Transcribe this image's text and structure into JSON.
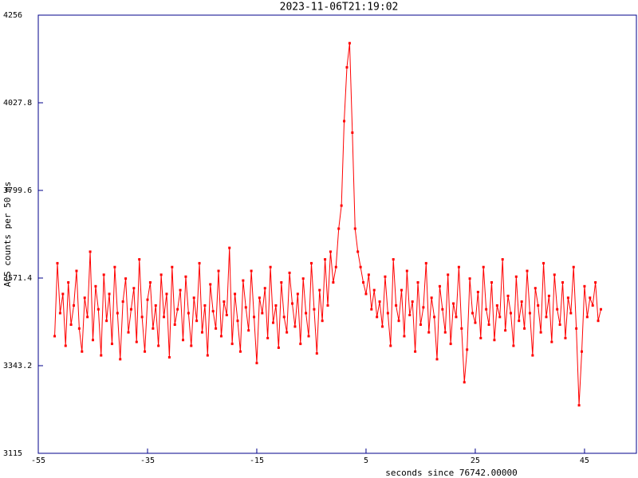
{
  "chart_data": {
    "type": "line",
    "title": "2023-11-06T21:19:02",
    "x_label": "seconds since 76742.00000",
    "y_label": "ACS counts per 50 ms",
    "xlim": [
      -55,
      54.5
    ],
    "xticks": [
      -55,
      -35,
      -15,
      5,
      25,
      45
    ],
    "ylim": [
      3115,
      4256
    ],
    "yticks": [
      3115,
      3343.2,
      3571.4,
      3799.6,
      4027.8,
      4256
    ],
    "x": [
      -52,
      -51.5,
      -51,
      -50.5,
      -50,
      -49.5,
      -49,
      -48.5,
      -48,
      -47.5,
      -47,
      -46.5,
      -46,
      -45.5,
      -45,
      -44.5,
      -44,
      -43.5,
      -43,
      -42.5,
      -42,
      -41.5,
      -41,
      -40.5,
      -40,
      -39.5,
      -39,
      -38.5,
      -38,
      -37.5,
      -37,
      -36.5,
      -36,
      -35.5,
      -35,
      -34.5,
      -34,
      -33.5,
      -33,
      -32.5,
      -32,
      -31.5,
      -31,
      -30.5,
      -30,
      -29.5,
      -29,
      -28.5,
      -28,
      -27.5,
      -27,
      -26.5,
      -26,
      -25.5,
      -25,
      -24.5,
      -24,
      -23.5,
      -23,
      -22.5,
      -22,
      -21.5,
      -21,
      -20.5,
      -20,
      -19.5,
      -19,
      -18.5,
      -18,
      -17.5,
      -17,
      -16.5,
      -16,
      -15.5,
      -15,
      -14.5,
      -14,
      -13.5,
      -13,
      -12.5,
      -12,
      -11.5,
      -11,
      -10.5,
      -10,
      -9.5,
      -9,
      -8.5,
      -8,
      -7.5,
      -7,
      -6.5,
      -6,
      -5.5,
      -5,
      -4.5,
      -4,
      -3.5,
      -3,
      -2.5,
      -2,
      -1.5,
      -1,
      -0.5,
      0,
      0.5,
      1,
      1.5,
      2,
      2.5,
      3,
      3.5,
      4,
      4.5,
      5,
      5.5,
      6,
      6.5,
      7,
      7.5,
      8,
      8.5,
      9,
      9.5,
      10,
      10.5,
      11,
      11.5,
      12,
      12.5,
      13,
      13.5,
      14,
      14.5,
      15,
      15.5,
      16,
      16.5,
      17,
      17.5,
      18,
      18.5,
      19,
      19.5,
      20,
      20.5,
      21,
      21.5,
      22,
      22.5,
      23,
      23.5,
      24,
      24.5,
      25,
      25.5,
      26,
      26.5,
      27,
      27.5,
      28,
      28.5,
      29,
      29.5,
      30,
      30.5,
      31,
      31.5,
      32,
      32.5,
      33,
      33.5,
      34,
      34.5,
      35,
      35.5,
      36,
      36.5,
      37,
      37.5,
      38,
      38.5,
      39,
      39.5,
      40,
      40.5,
      41,
      41.5,
      42,
      42.5,
      43,
      43.5,
      44,
      44.5,
      45,
      45.5,
      46,
      46.5,
      47,
      47.5,
      48
    ],
    "series": [
      {
        "color": "#ff0000",
        "values": [
          3420,
          3610,
          3480,
          3530,
          3395,
          3560,
          3450,
          3500,
          3590,
          3440,
          3380,
          3520,
          3470,
          3640,
          3410,
          3550,
          3490,
          3370,
          3580,
          3460,
          3530,
          3400,
          3600,
          3480,
          3360,
          3510,
          3570,
          3430,
          3490,
          3545,
          3405,
          3620,
          3470,
          3380,
          3515,
          3560,
          3440,
          3500,
          3395,
          3580,
          3470,
          3530,
          3365,
          3600,
          3450,
          3490,
          3540,
          3410,
          3575,
          3480,
          3395,
          3520,
          3460,
          3610,
          3430,
          3500,
          3370,
          3555,
          3485,
          3440,
          3590,
          3420,
          3510,
          3475,
          3650,
          3400,
          3530,
          3460,
          3380,
          3565,
          3495,
          3435,
          3590,
          3470,
          3350,
          3520,
          3480,
          3545,
          3415,
          3600,
          3455,
          3500,
          3390,
          3560,
          3470,
          3430,
          3585,
          3505,
          3445,
          3530,
          3400,
          3570,
          3480,
          3420,
          3610,
          3490,
          3375,
          3540,
          3460,
          3620,
          3500,
          3640,
          3560,
          3600,
          3700,
          3760,
          3980,
          4120,
          4183,
          3950,
          3700,
          3640,
          3600,
          3560,
          3530,
          3580,
          3490,
          3540,
          3470,
          3510,
          3445,
          3575,
          3480,
          3395,
          3620,
          3500,
          3460,
          3540,
          3420,
          3590,
          3475,
          3510,
          3380,
          3560,
          3450,
          3495,
          3610,
          3430,
          3520,
          3470,
          3360,
          3550,
          3490,
          3430,
          3580,
          3400,
          3505,
          3470,
          3600,
          3440,
          3300,
          3385,
          3570,
          3480,
          3455,
          3535,
          3415,
          3600,
          3490,
          3450,
          3560,
          3410,
          3500,
          3470,
          3620,
          3435,
          3525,
          3480,
          3395,
          3575,
          3460,
          3510,
          3440,
          3590,
          3480,
          3370,
          3545,
          3500,
          3430,
          3610,
          3470,
          3525,
          3405,
          3580,
          3490,
          3450,
          3560,
          3415,
          3520,
          3480,
          3600,
          3440,
          3240,
          3380,
          3550,
          3470,
          3520,
          3500,
          3560,
          3460,
          3490
        ]
      }
    ]
  }
}
